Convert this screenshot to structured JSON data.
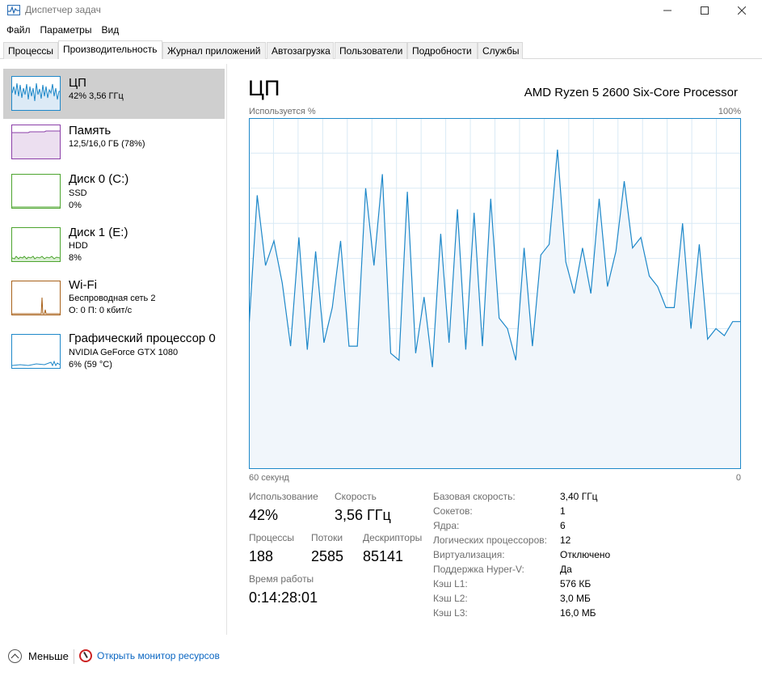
{
  "window": {
    "title": "Диспетчер задач",
    "icon": "task-manager-icon",
    "controls": [
      "minimize-icon",
      "maximize-icon",
      "close-icon"
    ]
  },
  "menu": [
    "Файл",
    "Параметры",
    "Вид"
  ],
  "tabs": [
    {
      "label": "Процессы",
      "active": false
    },
    {
      "label": "Производительность",
      "active": true
    },
    {
      "label": "Журнал приложений",
      "active": false
    },
    {
      "label": "Автозагрузка",
      "active": false
    },
    {
      "label": "Пользователи",
      "active": false
    },
    {
      "label": "Подробности",
      "active": false
    },
    {
      "label": "Службы",
      "active": false
    }
  ],
  "sidebar": {
    "items": [
      {
        "title": "ЦП",
        "line1": "42% 3,56 ГГц",
        "line2": "",
        "color": "#1e88c9",
        "selected": true
      },
      {
        "title": "Память",
        "line1": "12,5/16,0 ГБ (78%)",
        "line2": "",
        "color": "#8b3fa8",
        "selected": false
      },
      {
        "title": "Диск 0 (C:)",
        "line1": "SSD",
        "line2": "0%",
        "color": "#4ca42e",
        "selected": false
      },
      {
        "title": "Диск 1 (E:)",
        "line1": "HDD",
        "line2": "8%",
        "color": "#4ca42e",
        "selected": false
      },
      {
        "title": "Wi-Fi",
        "line1": "Беспроводная сеть 2",
        "line2": "О: 0 П: 0 кбит/с",
        "color": "#a8611a",
        "selected": false
      },
      {
        "title": "Графический процессор 0",
        "line1": "NVIDIA GeForce GTX 1080",
        "line2": "6% (59 °C)",
        "color": "#1e88c9",
        "selected": false
      }
    ]
  },
  "main": {
    "title": "ЦП",
    "processor": "AMD Ryzen 5 2600 Six-Core Processor",
    "graph_label_left": "Используется %",
    "graph_label_right": "100%",
    "axis_left": "60 секунд",
    "axis_right": "0",
    "stats": {
      "usage_label": "Использование",
      "usage_value": "42%",
      "speed_label": "Скорость",
      "speed_value": "3,56 ГГц",
      "processes_label": "Процессы",
      "processes_value": "188",
      "threads_label": "Потоки",
      "threads_value": "2585",
      "handles_label": "Дескрипторы",
      "handles_value": "85141",
      "uptime_label": "Время работы",
      "uptime_value": "0:14:28:01"
    },
    "specs": [
      {
        "label": "Базовая скорость:",
        "value": "3,40 ГГц"
      },
      {
        "label": "Сокетов:",
        "value": "1"
      },
      {
        "label": "Ядра:",
        "value": "6"
      },
      {
        "label": "Логических процессоров:",
        "value": "12"
      },
      {
        "label": "Виртуализация:",
        "value": "Отключено"
      },
      {
        "label": "Поддержка Hyper-V:",
        "value": "Да"
      },
      {
        "label": "Кэш L1:",
        "value": "576 КБ"
      },
      {
        "label": "Кэш L2:",
        "value": "3,0 МБ"
      },
      {
        "label": "Кэш L3:",
        "value": "16,0 МБ"
      }
    ]
  },
  "footer": {
    "less_label": "Меньше",
    "monitor_label": "Открыть монитор ресурсов"
  },
  "chart_data": {
    "type": "area",
    "ylim": [
      0,
      100
    ],
    "grid": true,
    "color": "#1e88c9",
    "fill": "#f1f6fb",
    "values": [
      40,
      78,
      58,
      65,
      53,
      35,
      66,
      34,
      62,
      36,
      46,
      65,
      35,
      35,
      80,
      58,
      84,
      33,
      31,
      79,
      33,
      49,
      29,
      67,
      36,
      74,
      34,
      73,
      35,
      77,
      43,
      40,
      31,
      63,
      35,
      61,
      64,
      91,
      59,
      50,
      63,
      50,
      77,
      52,
      62,
      82,
      63,
      66,
      55,
      52,
      46,
      46,
      70,
      40,
      64,
      37,
      40,
      38,
      42,
      42
    ]
  }
}
